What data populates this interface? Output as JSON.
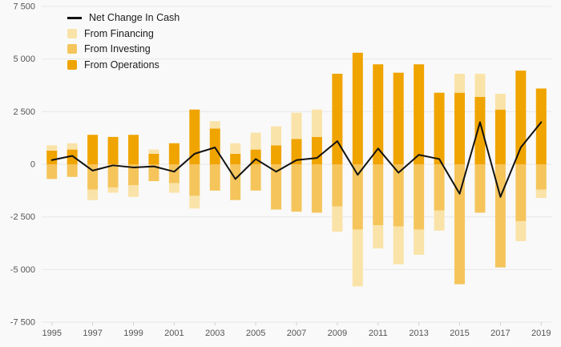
{
  "page": {
    "background": "#f9f9f9",
    "gridline_color": "#e8e8e8",
    "tick_color": "#cfcfcf",
    "axis_text_color": "#555555"
  },
  "legend": {
    "items": [
      {
        "label": "Net Change In Cash",
        "type": "line",
        "color": "#111111"
      },
      {
        "label": "From Financing",
        "type": "square",
        "color": "#FAE3A8"
      },
      {
        "label": "From Investing",
        "type": "square",
        "color": "#F5C55C"
      },
      {
        "label": "From Operations",
        "type": "square",
        "color": "#F0A400"
      }
    ]
  },
  "chart_data": {
    "type": "bar",
    "subtype": "stacked-bars-with-net-line",
    "title": "",
    "xlabel": "",
    "ylabel": "",
    "categories": [
      1995,
      1996,
      1997,
      1998,
      1999,
      2000,
      2001,
      2002,
      2003,
      2004,
      2005,
      2006,
      2007,
      2008,
      2009,
      2010,
      2011,
      2012,
      2013,
      2014,
      2015,
      2016,
      2017,
      2018,
      2019
    ],
    "series": [
      {
        "name": "From Financing",
        "color": "#FAE3A8",
        "values": [
          250,
          300,
          -500,
          -250,
          -550,
          200,
          -450,
          -600,
          350,
          500,
          800,
          900,
          1250,
          1300,
          -1200,
          -2700,
          -1100,
          -1800,
          -1200,
          -950,
          900,
          1100,
          750,
          -950,
          -400
        ]
      },
      {
        "name": "From Investing",
        "color": "#F5C55C",
        "values": [
          -700,
          -600,
          -1200,
          -1100,
          -1000,
          -800,
          -900,
          -1500,
          -1250,
          -1700,
          -1250,
          -2150,
          -2250,
          -2300,
          -2000,
          -3100,
          -2900,
          -2950,
          -3100,
          -2200,
          -5700,
          -2300,
          -4900,
          -2700,
          -1200
        ]
      },
      {
        "name": "From Operations",
        "color": "#F0A400",
        "values": [
          650,
          700,
          1400,
          1300,
          1400,
          500,
          1000,
          2600,
          1700,
          500,
          700,
          900,
          1200,
          1300,
          4300,
          5300,
          4750,
          4350,
          4750,
          3400,
          3400,
          3200,
          2600,
          4450,
          3600
        ]
      }
    ],
    "line": {
      "name": "Net Change In Cash",
      "color": "#111111",
      "values": [
        200,
        400,
        -300,
        -50,
        -150,
        -100,
        -350,
        500,
        800,
        -700,
        250,
        -350,
        200,
        300,
        1100,
        -500,
        750,
        -400,
        450,
        250,
        -1400,
        2000,
        -1550,
        800,
        2000
      ]
    },
    "ylim": [
      -7500,
      7500
    ],
    "yticks": [
      7500,
      5000,
      2500,
      0,
      -2500,
      -5000,
      -7500
    ],
    "ytick_labels": [
      "7 500",
      "5 000",
      "2 500",
      "0",
      "-2 500",
      "-5 000",
      "-7 500"
    ],
    "xtick_labels": [
      "1995",
      "1997",
      "1999",
      "2001",
      "2003",
      "2005",
      "2007",
      "2009",
      "2011",
      "2013",
      "2015",
      "2017",
      "2019"
    ],
    "grid": true,
    "legend_position": "top-left"
  }
}
